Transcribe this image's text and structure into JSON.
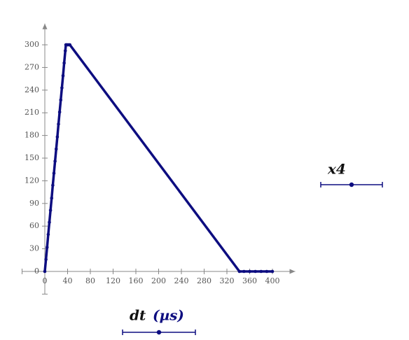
{
  "chart_data": {
    "type": "line",
    "x": [
      0,
      2,
      4,
      6,
      8,
      10,
      12,
      14,
      16,
      18,
      20,
      22,
      24,
      26,
      28,
      30,
      32,
      34,
      36,
      37,
      38,
      40,
      42,
      44,
      342,
      350,
      360,
      370,
      380,
      390,
      400
    ],
    "series": [
      {
        "color": "#0d0d80",
        "values": [
          0,
          16,
          32,
          49,
          65,
          81,
          97,
          114,
          130,
          146,
          162,
          178,
          195,
          211,
          227,
          243,
          259,
          276,
          292,
          300,
          300,
          300,
          300,
          300,
          0,
          0,
          0,
          0,
          0,
          0,
          0
        ]
      }
    ],
    "xlim": [
      -40,
      440
    ],
    "ylim": [
      -30,
      328
    ],
    "xticks": [
      0,
      40,
      80,
      120,
      160,
      200,
      240,
      280,
      320,
      360,
      400
    ],
    "yticks": [
      0,
      30,
      60,
      90,
      120,
      150,
      180,
      210,
      240,
      270,
      300
    ],
    "xlabel": "dt",
    "xunit": "(µs)",
    "ylabel": "x4"
  }
}
